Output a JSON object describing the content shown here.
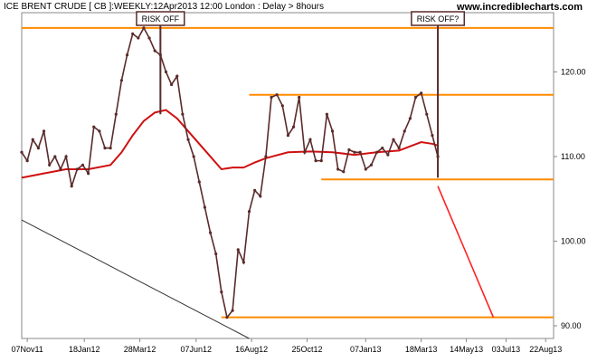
{
  "header": {
    "instrument": "ICE BRENT CRUDE [ CB ]:WEEKLY:12Apr2013 12:00 London : Delay > 8hours",
    "website": "www.incrediblecharts.com"
  },
  "colors": {
    "price": "#5b2a2a",
    "moving_average": "#d01010",
    "horizontal_levels": "#ff8c00",
    "trendline": "#333333",
    "projection": "#ff2020",
    "marker": "#5b2a2a",
    "axis": "#888888"
  },
  "chart_data": {
    "type": "line",
    "title": "",
    "xlabel": "",
    "ylabel": "",
    "x_ticks": [
      "07Nov11",
      "18Jan12",
      "28Mar12",
      "07Jun12",
      "16Aug12",
      "25Oct12",
      "07Jan13",
      "18Mar13",
      "14May13",
      "03Jul13",
      "22Aug13"
    ],
    "y_ticks": [
      90.0,
      100.0,
      110.0,
      120.0
    ],
    "ylim": [
      88.5,
      127
    ],
    "series": [
      {
        "role": "price",
        "x": [
          "2011-10-31",
          "2011-11-07",
          "2011-11-14",
          "2011-11-21",
          "2011-11-28",
          "2011-12-05",
          "2011-12-12",
          "2011-12-19",
          "2011-12-26",
          "2012-01-02",
          "2012-01-09",
          "2012-01-16",
          "2012-01-23",
          "2012-01-30",
          "2012-02-06",
          "2012-02-13",
          "2012-02-20",
          "2012-02-27",
          "2012-03-05",
          "2012-03-12",
          "2012-03-19",
          "2012-03-26",
          "2012-04-02",
          "2012-04-09",
          "2012-04-16",
          "2012-04-23",
          "2012-04-30",
          "2012-05-07",
          "2012-05-14",
          "2012-05-21",
          "2012-05-28",
          "2012-06-04",
          "2012-06-11",
          "2012-06-18",
          "2012-06-25",
          "2012-07-02",
          "2012-07-09",
          "2012-07-16",
          "2012-07-23",
          "2012-07-30",
          "2012-08-06",
          "2012-08-13",
          "2012-08-20",
          "2012-08-27",
          "2012-09-03",
          "2012-09-10",
          "2012-09-17",
          "2012-09-24",
          "2012-10-01",
          "2012-10-08",
          "2012-10-15",
          "2012-10-22",
          "2012-10-29",
          "2012-11-05",
          "2012-11-12",
          "2012-11-19",
          "2012-11-26",
          "2012-12-03",
          "2012-12-10",
          "2012-12-17",
          "2012-12-24",
          "2012-12-31",
          "2013-01-07",
          "2013-01-14",
          "2013-01-21",
          "2013-01-28",
          "2013-02-04",
          "2013-02-11",
          "2013-02-18",
          "2013-02-25",
          "2013-03-04",
          "2013-03-11",
          "2013-03-18",
          "2013-03-25",
          "2013-04-01",
          "2013-04-08"
        ],
        "values": [
          110.5,
          109.5,
          112,
          111,
          113,
          109,
          110,
          108.5,
          110,
          106.5,
          108.5,
          109,
          108,
          113.5,
          113,
          111,
          111,
          115,
          119,
          122,
          124.5,
          124,
          125.2,
          124,
          122.5,
          122,
          120,
          118.5,
          119.5,
          115,
          112,
          110,
          107,
          104,
          101,
          98.5,
          94,
          91,
          91.8,
          99,
          97.5,
          103.5,
          106,
          105.3,
          110,
          117,
          117.3,
          116,
          112.5,
          113.5,
          117,
          110.5,
          112,
          109.5,
          109.5,
          115,
          113,
          108.5,
          108.2,
          110.8,
          110.5,
          110.5,
          108.5,
          109,
          110.5,
          111,
          110.2,
          112,
          111,
          113,
          114.5,
          117,
          117.5,
          115,
          112.5,
          110
        ]
      },
      {
        "role": "moving_average",
        "x": [
          "2011-10-31",
          "2011-11-28",
          "2011-12-26",
          "2012-01-23",
          "2012-02-20",
          "2012-03-05",
          "2012-03-19",
          "2012-04-02",
          "2012-04-16",
          "2012-04-30",
          "2012-05-14",
          "2012-05-28",
          "2012-06-11",
          "2012-06-25",
          "2012-07-09",
          "2012-07-23",
          "2012-08-06",
          "2012-08-20",
          "2012-09-03",
          "2012-10-01",
          "2012-10-29",
          "2012-11-26",
          "2012-12-24",
          "2013-01-21",
          "2013-02-18",
          "2013-03-04",
          "2013-03-18",
          "2013-04-01",
          "2013-04-08"
        ],
        "values": [
          107.5,
          108,
          108.5,
          108.5,
          109,
          110.5,
          112.5,
          114.2,
          115.2,
          115.5,
          114.5,
          113,
          111.5,
          110,
          108.5,
          108.7,
          108.7,
          109.3,
          109.8,
          110.5,
          110.6,
          110.5,
          110.2,
          110.5,
          110.7,
          111.2,
          111.7,
          111.5,
          111.3
        ]
      },
      {
        "role": "projection",
        "x": [
          "2013-04-08",
          "2013-06-17"
        ],
        "values": [
          106.5,
          91
        ]
      },
      {
        "role": "trendline",
        "x": [
          "2011-10-31",
          "2012-08-13"
        ],
        "values": [
          102.5,
          88.5
        ]
      }
    ],
    "horizontal_lines": [
      {
        "value": 125.2,
        "from": "2011-10-31",
        "to": "2013-09-01"
      },
      {
        "value": 117.3,
        "from": "2012-08-13",
        "to": "2013-09-01"
      },
      {
        "value": 107.3,
        "from": "2012-11-12",
        "to": "2013-09-01"
      },
      {
        "value": 91,
        "from": "2012-07-09",
        "to": "2013-09-01"
      }
    ],
    "annotations": [
      {
        "text": "RISK OFF",
        "x": "2012-04-23",
        "y": 115
      },
      {
        "text": "RISK OFF?",
        "x": "2013-04-08",
        "y": 107.5
      }
    ],
    "grid": false,
    "legend": "none"
  }
}
